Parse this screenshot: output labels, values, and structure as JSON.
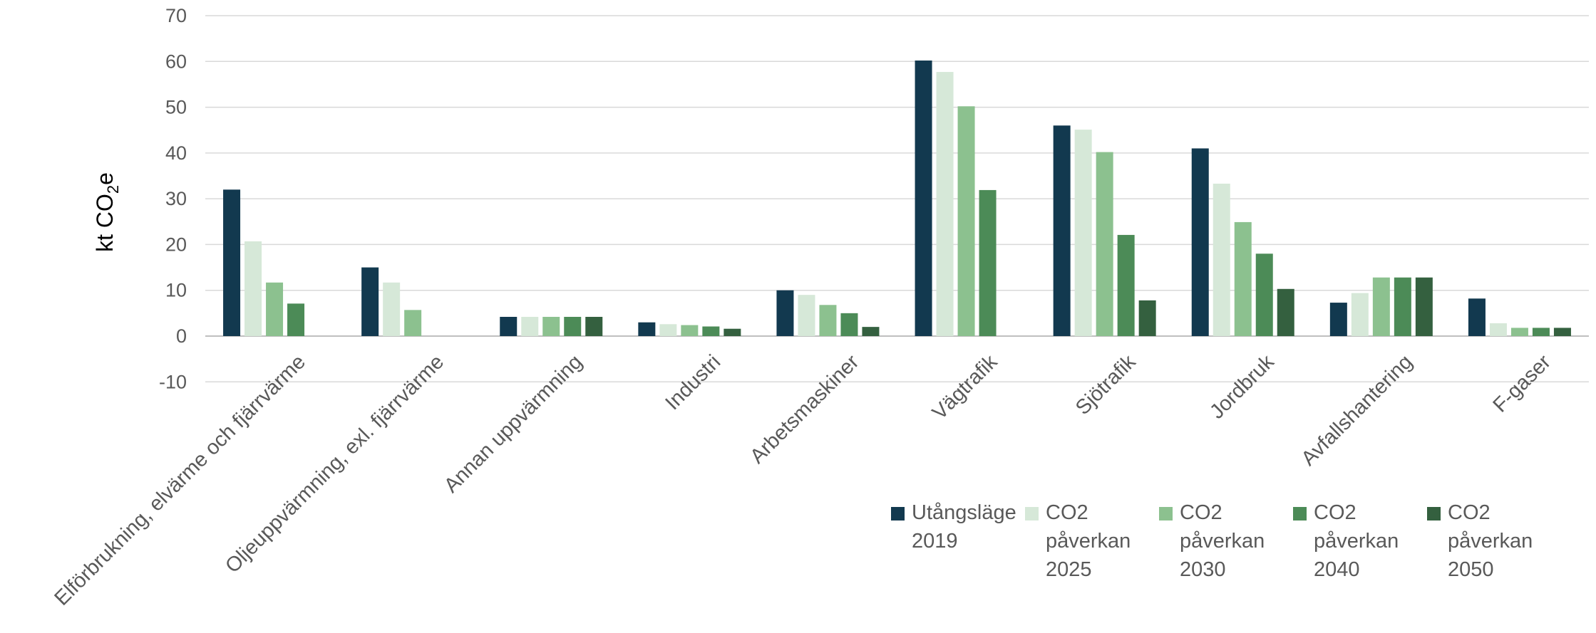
{
  "chart_data": {
    "type": "bar",
    "title": "",
    "xlabel": "",
    "ylabel": "kt CO",
    "ylabel_sub": "2",
    "ylabel_suffix": "e",
    "ylim": [
      -10,
      70
    ],
    "yticks": [
      -10,
      0,
      10,
      20,
      30,
      40,
      50,
      60,
      70
    ],
    "grid": true,
    "legend_position": "bottom-right",
    "categories": [
      "Elförbrukning, elvärme och fjärrvärme",
      "Oljeuppvärmning, exl. fjärrvärme",
      "Annan uppvärmning",
      "Industri",
      "Arbetsmaskiner",
      "Vägtrafik",
      "Sjötrafik",
      "Jordbruk",
      "Avfallshantering",
      "F-gaser"
    ],
    "series": [
      {
        "name": "Utångsläge 2019",
        "color": "#12394f",
        "values": [
          32,
          15,
          4.2,
          3,
          10,
          60.2,
          46,
          41,
          7.3,
          8.2
        ]
      },
      {
        "name": "CO2 påverkan 2025",
        "color": "#d6e8d8",
        "values": [
          20.7,
          11.7,
          4.2,
          2.6,
          9,
          57.7,
          45.1,
          33.3,
          9.4,
          2.8
        ]
      },
      {
        "name": "CO2 påverkan 2030",
        "color": "#8cc18f",
        "values": [
          11.7,
          5.7,
          4.2,
          2.4,
          6.8,
          50.2,
          40.2,
          24.9,
          12.8,
          1.8
        ]
      },
      {
        "name": "CO2 påverkan 2040",
        "color": "#4c8b57",
        "values": [
          7.1,
          null,
          4.2,
          2.1,
          5,
          31.9,
          22.1,
          18,
          12.8,
          1.8
        ]
      },
      {
        "name": "CO2 påverkan 2050",
        "color": "#34603f",
        "values": [
          null,
          null,
          4.2,
          1.6,
          2,
          null,
          7.8,
          10.3,
          12.8,
          1.8
        ]
      }
    ]
  },
  "legend": [
    {
      "lines": [
        "Utångsläge",
        "2019"
      ]
    },
    {
      "lines": [
        "CO2",
        "påverkan",
        "2025"
      ]
    },
    {
      "lines": [
        "CO2",
        "påverkan",
        "2030"
      ]
    },
    {
      "lines": [
        "CO2",
        "påverkan",
        "2040"
      ]
    },
    {
      "lines": [
        "CO2",
        "påverkan",
        "2050"
      ]
    }
  ]
}
